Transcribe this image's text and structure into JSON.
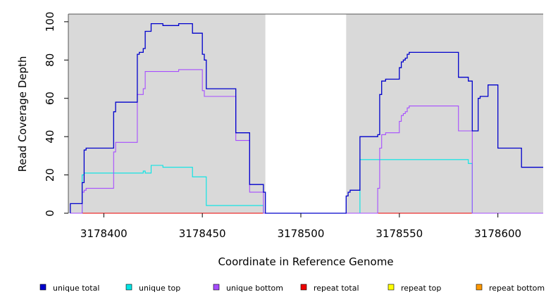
{
  "chart_data": {
    "type": "line",
    "title": "",
    "xlabel": "Coordinate in Reference Genome",
    "ylabel": "Read Coverage Depth",
    "xlim": [
      3178382,
      3178623
    ],
    "ylim": [
      0,
      104
    ],
    "xticks": [
      3178400,
      3178450,
      3178500,
      3178550,
      3178600
    ],
    "yticks": [
      0,
      20,
      40,
      60,
      80,
      100
    ],
    "xtick_labels": [
      "3178400",
      "3178450",
      "3178500",
      "3178550",
      "3178600"
    ],
    "ytick_labels": [
      "0",
      "20",
      "40",
      "60",
      "80",
      "100"
    ],
    "panel_color": "#d9d9d9",
    "gap_region": [
      3178482,
      3178523
    ],
    "grid": false,
    "legend_position": "bottom",
    "series": [
      {
        "name": "unique total",
        "color": "#0000cc",
        "points": [
          [
            3178383,
            0
          ],
          [
            3178383,
            5
          ],
          [
            3178389,
            5
          ],
          [
            3178389,
            16
          ],
          [
            3178390,
            16
          ],
          [
            3178390,
            33
          ],
          [
            3178391,
            33
          ],
          [
            3178391,
            34
          ],
          [
            3178405,
            34
          ],
          [
            3178405,
            53
          ],
          [
            3178406,
            53
          ],
          [
            3178406,
            58
          ],
          [
            3178417,
            58
          ],
          [
            3178417,
            83
          ],
          [
            3178418,
            83
          ],
          [
            3178418,
            84
          ],
          [
            3178420,
            84
          ],
          [
            3178420,
            86
          ],
          [
            3178421,
            86
          ],
          [
            3178421,
            95
          ],
          [
            3178424,
            95
          ],
          [
            3178424,
            99
          ],
          [
            3178430,
            99
          ],
          [
            3178430,
            98
          ],
          [
            3178438,
            98
          ],
          [
            3178438,
            99
          ],
          [
            3178445,
            99
          ],
          [
            3178445,
            94
          ],
          [
            3178450,
            94
          ],
          [
            3178450,
            83
          ],
          [
            3178451,
            83
          ],
          [
            3178451,
            80
          ],
          [
            3178452,
            80
          ],
          [
            3178452,
            65
          ],
          [
            3178467,
            65
          ],
          [
            3178467,
            42
          ],
          [
            3178474,
            42
          ],
          [
            3178474,
            15
          ],
          [
            3178481,
            15
          ],
          [
            3178481,
            11
          ],
          [
            3178482,
            11
          ],
          [
            3178482,
            0
          ],
          [
            3178523,
            0
          ],
          [
            3178523,
            9
          ],
          [
            3178524,
            9
          ],
          [
            3178524,
            11
          ],
          [
            3178525,
            11
          ],
          [
            3178525,
            12
          ],
          [
            3178530,
            12
          ],
          [
            3178530,
            40
          ],
          [
            3178539,
            40
          ],
          [
            3178539,
            41
          ],
          [
            3178540,
            41
          ],
          [
            3178540,
            62
          ],
          [
            3178541,
            62
          ],
          [
            3178541,
            69
          ],
          [
            3178543,
            69
          ],
          [
            3178543,
            70
          ],
          [
            3178550,
            70
          ],
          [
            3178550,
            76
          ],
          [
            3178551,
            76
          ],
          [
            3178551,
            79
          ],
          [
            3178552,
            79
          ],
          [
            3178552,
            80
          ],
          [
            3178553,
            80
          ],
          [
            3178553,
            81
          ],
          [
            3178554,
            81
          ],
          [
            3178554,
            83
          ],
          [
            3178555,
            83
          ],
          [
            3178555,
            84
          ],
          [
            3178580,
            84
          ],
          [
            3178580,
            71
          ],
          [
            3178585,
            71
          ],
          [
            3178585,
            69
          ],
          [
            3178587,
            69
          ],
          [
            3178587,
            43
          ],
          [
            3178590,
            43
          ],
          [
            3178590,
            60
          ],
          [
            3178591,
            60
          ],
          [
            3178591,
            61
          ],
          [
            3178595,
            61
          ],
          [
            3178595,
            67
          ],
          [
            3178600,
            67
          ],
          [
            3178600,
            34
          ],
          [
            3178612,
            34
          ],
          [
            3178612,
            24
          ],
          [
            3178623,
            24
          ]
        ]
      },
      {
        "name": "unique top",
        "color": "#00e5e5",
        "points": [
          [
            3178383,
            0
          ],
          [
            3178389,
            0
          ],
          [
            3178389,
            20
          ],
          [
            3178390,
            20
          ],
          [
            3178390,
            21
          ],
          [
            3178420,
            21
          ],
          [
            3178420,
            22
          ],
          [
            3178421,
            22
          ],
          [
            3178421,
            21
          ],
          [
            3178424,
            21
          ],
          [
            3178424,
            25
          ],
          [
            3178430,
            25
          ],
          [
            3178430,
            24
          ],
          [
            3178445,
            24
          ],
          [
            3178445,
            19
          ],
          [
            3178452,
            19
          ],
          [
            3178452,
            4
          ],
          [
            3178481,
            4
          ],
          [
            3178481,
            0
          ],
          [
            3178530,
            0
          ],
          [
            3178530,
            28
          ],
          [
            3178585,
            28
          ],
          [
            3178585,
            26
          ],
          [
            3178587,
            26
          ],
          [
            3178587,
            0
          ],
          [
            3178623,
            0
          ]
        ]
      },
      {
        "name": "unique bottom",
        "color": "#a64dff",
        "points": [
          [
            3178383,
            0
          ],
          [
            3178389,
            0
          ],
          [
            3178389,
            11
          ],
          [
            3178390,
            11
          ],
          [
            3178390,
            12
          ],
          [
            3178391,
            12
          ],
          [
            3178391,
            13
          ],
          [
            3178405,
            13
          ],
          [
            3178405,
            32
          ],
          [
            3178406,
            32
          ],
          [
            3178406,
            37
          ],
          [
            3178417,
            37
          ],
          [
            3178417,
            62
          ],
          [
            3178420,
            62
          ],
          [
            3178420,
            65
          ],
          [
            3178421,
            65
          ],
          [
            3178421,
            74
          ],
          [
            3178438,
            74
          ],
          [
            3178438,
            75
          ],
          [
            3178450,
            75
          ],
          [
            3178450,
            64
          ],
          [
            3178451,
            64
          ],
          [
            3178451,
            61
          ],
          [
            3178467,
            61
          ],
          [
            3178467,
            38
          ],
          [
            3178474,
            38
          ],
          [
            3178474,
            11
          ],
          [
            3178481,
            11
          ],
          [
            3178481,
            0
          ],
          [
            3178539,
            0
          ],
          [
            3178539,
            13
          ],
          [
            3178540,
            13
          ],
          [
            3178540,
            34
          ],
          [
            3178541,
            34
          ],
          [
            3178541,
            41
          ],
          [
            3178543,
            41
          ],
          [
            3178543,
            42
          ],
          [
            3178550,
            42
          ],
          [
            3178550,
            48
          ],
          [
            3178551,
            48
          ],
          [
            3178551,
            51
          ],
          [
            3178552,
            51
          ],
          [
            3178552,
            52
          ],
          [
            3178553,
            52
          ],
          [
            3178553,
            53
          ],
          [
            3178554,
            53
          ],
          [
            3178554,
            55
          ],
          [
            3178555,
            55
          ],
          [
            3178555,
            56
          ],
          [
            3178580,
            56
          ],
          [
            3178580,
            43
          ],
          [
            3178587,
            43
          ],
          [
            3178587,
            0
          ],
          [
            3178623,
            0
          ]
        ]
      },
      {
        "name": "repeat total",
        "color": "#ee0000",
        "points": [
          [
            3178383,
            0
          ],
          [
            3178623,
            0
          ]
        ]
      },
      {
        "name": "repeat top",
        "color": "#ffff00",
        "points": [
          [
            3178383,
            0
          ],
          [
            3178623,
            0
          ]
        ]
      },
      {
        "name": "repeat bottom",
        "color": "#ff9900",
        "points": [
          [
            3178383,
            0
          ],
          [
            3178623,
            0
          ]
        ]
      }
    ]
  }
}
